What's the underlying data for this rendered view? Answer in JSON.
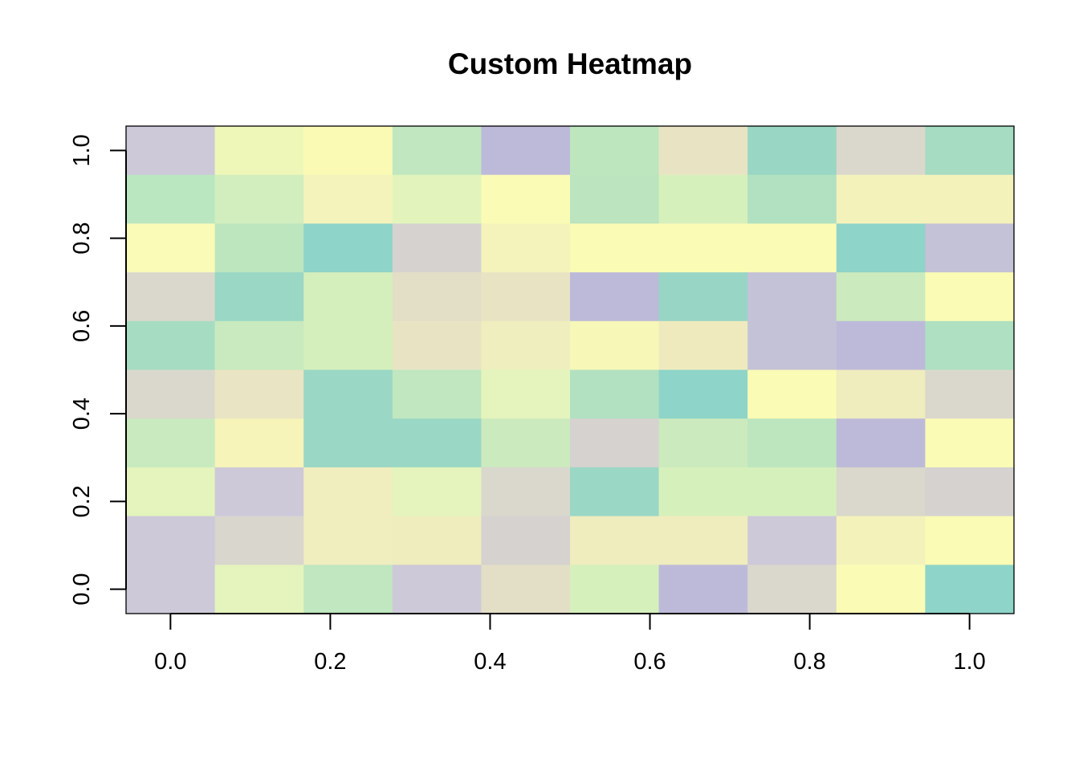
{
  "chart_data": {
    "type": "heatmap",
    "title": "Custom Heatmap",
    "xlabel": "",
    "ylabel": "",
    "xlim": [
      -0.0556,
      1.0556
    ],
    "ylim": [
      -0.0556,
      1.0556
    ],
    "x_ticks": [
      0.0,
      0.2,
      0.4,
      0.6,
      0.8,
      1.0
    ],
    "x_tick_labels": [
      "0.0",
      "0.2",
      "0.4",
      "0.6",
      "0.8",
      "1.0"
    ],
    "y_ticks": [
      0.0,
      0.2,
      0.4,
      0.6,
      0.8,
      1.0
    ],
    "y_tick_labels": [
      "0.0",
      "0.2",
      "0.4",
      "0.6",
      "0.8",
      "1.0"
    ],
    "grid": false,
    "legend": "none",
    "ncols": 10,
    "nrows": 10,
    "cell_colors_top_to_bottom": [
      [
        "#cdc9d8",
        "#eef7b8",
        "#fafab5",
        "#c0e7bf",
        "#bdbad9",
        "#bde6be",
        "#e8e4c3",
        "#99d6c4",
        "#dad8cc",
        "#a5dcc2"
      ],
      [
        "#bbe7c0",
        "#d2edbe",
        "#f4f3bb",
        "#e2f4bc",
        "#fafbb5",
        "#bbe4bf",
        "#d6f0bc",
        "#b1e1c1",
        "#f4f2bb",
        "#f4f2bb"
      ],
      [
        "#fafbb6",
        "#bde6be",
        "#8ed4c8",
        "#d5d2d0",
        "#f4f3bb",
        "#fafbb5",
        "#fafbb5",
        "#fafbb5",
        "#8ed4c8",
        "#c4c2d6"
      ],
      [
        "#dad8cc",
        "#9ad7c5",
        "#d4eebc",
        "#e3dec6",
        "#e8e4c3",
        "#bdbad9",
        "#98d5c5",
        "#c4c2d6",
        "#cbeabd",
        "#fafbb5"
      ],
      [
        "#a6dcc2",
        "#c8eabe",
        "#d4eebc",
        "#e8e4c3",
        "#efeebe",
        "#f7f7b8",
        "#efeabe",
        "#c4c2d6",
        "#bdbad9",
        "#aee0c1"
      ],
      [
        "#dad8cc",
        "#e9e4c3",
        "#9ad7c5",
        "#c0e7bf",
        "#e4f4bc",
        "#b1e1c1",
        "#8ed4c8",
        "#fafbb5",
        "#efecbe",
        "#dad8cc"
      ],
      [
        "#c8eabe",
        "#f6f4b8",
        "#9ad7c5",
        "#9ad7c5",
        "#cbeabd",
        "#d5d2d0",
        "#cbeabd",
        "#bde6be",
        "#bdbad9",
        "#fafbb5"
      ],
      [
        "#e4f4bc",
        "#cdc9d8",
        "#f0edbe",
        "#e4f4bc",
        "#dad8cc",
        "#9ad7c5",
        "#d6f0bc",
        "#d6f0bc",
        "#dad8cc",
        "#d5d2d0"
      ],
      [
        "#cdc9d8",
        "#d9d6cd",
        "#f0edbe",
        "#efecbe",
        "#d5d2d0",
        "#efecbe",
        "#efecbe",
        "#cdc9d8",
        "#f4f2bb",
        "#fafbb5"
      ],
      [
        "#cdc9d8",
        "#e4f4bc",
        "#c0e7bf",
        "#cdc9d8",
        "#e3dec6",
        "#d6f0bc",
        "#bdbad9",
        "#dad8cc",
        "#fafbb5",
        "#8ed4c8"
      ]
    ]
  }
}
